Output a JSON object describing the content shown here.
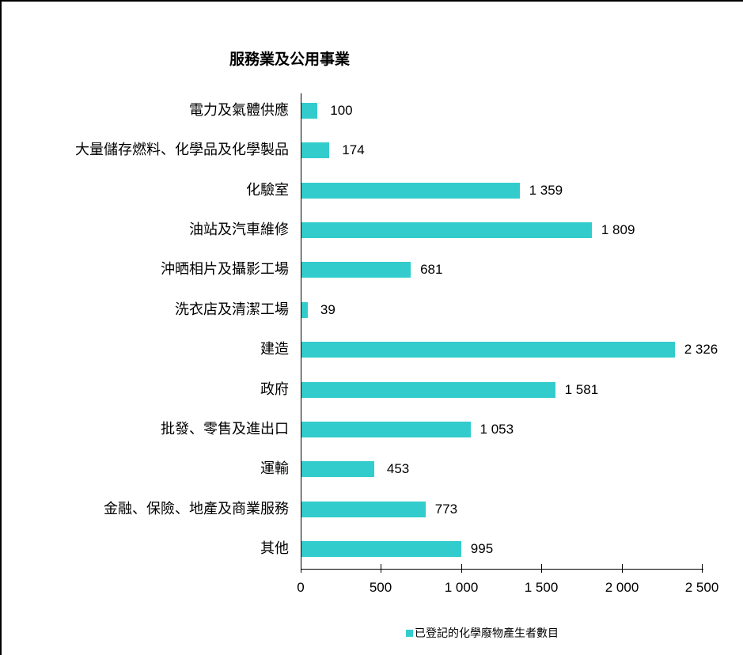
{
  "colors": {
    "bar": "#33cccc",
    "axis": "#000000",
    "background": "#ffffff"
  },
  "chart_data": {
    "type": "bar",
    "orientation": "horizontal",
    "title": "服務業及公用事業",
    "xlabel": "",
    "ylabel": "",
    "xlim": [
      0,
      2500
    ],
    "xticks": [
      0,
      500,
      1000,
      1500,
      2000,
      2500
    ],
    "xtick_labels": [
      "0",
      "500",
      "1 000",
      "1 500",
      "2 000",
      "2 500"
    ],
    "grid": false,
    "legend_position": "bottom",
    "categories": [
      "電力及氣體供應",
      "大量儲存燃料、化學品及化學製品",
      "化驗室",
      "油站及汽車維修",
      "沖晒相片及攝影工場",
      "洗衣店及清潔工場",
      "建造",
      "政府",
      "批發、零售及進出口",
      "運輸",
      "金融、保險、地產及商業服務",
      "其他"
    ],
    "series": [
      {
        "name": "已登記的化學廢物產生者數目",
        "color": "#33cccc",
        "values": [
          100,
          174,
          1359,
          1809,
          681,
          39,
          2326,
          1581,
          1053,
          453,
          773,
          995
        ],
        "value_labels": [
          "100",
          "174",
          "1 359",
          "1 809",
          "681",
          "39",
          "2 326",
          "1 581",
          "1 053",
          "453",
          "773",
          "995"
        ]
      }
    ]
  }
}
